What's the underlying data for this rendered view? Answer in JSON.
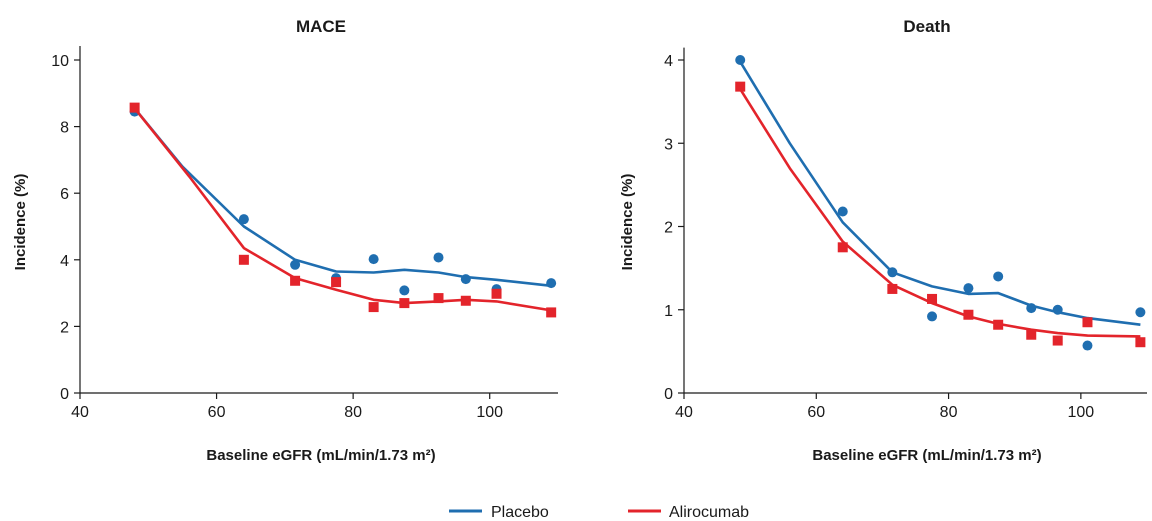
{
  "chart_data": [
    {
      "type": "scatter",
      "title": "MACE",
      "xlabel": "Baseline eGFR (mL/min/1.73 m²)",
      "ylabel": "Incidence (%)",
      "xlim": [
        40,
        110
      ],
      "ylim": [
        0,
        10.3
      ],
      "x_ticks": [
        40,
        60,
        80,
        100
      ],
      "y_ticks": [
        0,
        2,
        4,
        6,
        8,
        10
      ],
      "grid": false,
      "series": [
        {
          "name": "Placebo",
          "color": "#1f6eb0",
          "marker": "circle",
          "points": [
            [
              48,
              8.45
            ],
            [
              64,
              5.22
            ],
            [
              71.5,
              3.85
            ],
            [
              77.5,
              3.45
            ],
            [
              83,
              4.02
            ],
            [
              87.5,
              3.08
            ],
            [
              92.5,
              4.07
            ],
            [
              96.5,
              3.42
            ],
            [
              101,
              3.12
            ],
            [
              109,
              3.3
            ]
          ],
          "trend": [
            [
              48,
              8.55
            ],
            [
              55,
              6.8
            ],
            [
              64,
              5.0
            ],
            [
              71.5,
              4.0
            ],
            [
              77.5,
              3.65
            ],
            [
              83,
              3.62
            ],
            [
              87.5,
              3.7
            ],
            [
              92.5,
              3.62
            ],
            [
              96.5,
              3.48
            ],
            [
              101,
              3.4
            ],
            [
              109,
              3.22
            ]
          ]
        },
        {
          "name": "Alirocumab",
          "color": "#e3242b",
          "marker": "square",
          "points": [
            [
              48,
              8.57
            ],
            [
              64,
              4.0
            ],
            [
              71.5,
              3.37
            ],
            [
              77.5,
              3.33
            ],
            [
              83,
              2.58
            ],
            [
              87.5,
              2.7
            ],
            [
              92.5,
              2.85
            ],
            [
              96.5,
              2.77
            ],
            [
              101,
              2.98
            ],
            [
              109,
              2.42
            ]
          ],
          "trend": [
            [
              48,
              8.55
            ],
            [
              56,
              6.5
            ],
            [
              64,
              4.35
            ],
            [
              71.5,
              3.45
            ],
            [
              77.5,
              3.1
            ],
            [
              83,
              2.8
            ],
            [
              87.5,
              2.7
            ],
            [
              92.5,
              2.75
            ],
            [
              96.5,
              2.8
            ],
            [
              101,
              2.75
            ],
            [
              109,
              2.48
            ]
          ]
        }
      ]
    },
    {
      "type": "scatter",
      "title": "Death",
      "xlabel": "Baseline eGFR (mL/min/1.73 m²)",
      "ylabel": "Incidence (%)",
      "xlim": [
        40,
        110
      ],
      "ylim": [
        0,
        4.1
      ],
      "x_ticks": [
        40,
        60,
        80,
        100
      ],
      "y_ticks": [
        0,
        1,
        2,
        3,
        4
      ],
      "grid": false,
      "series": [
        {
          "name": "Placebo",
          "color": "#1f6eb0",
          "marker": "circle",
          "points": [
            [
              48.5,
              4.0
            ],
            [
              64,
              2.18
            ],
            [
              71.5,
              1.45
            ],
            [
              77.5,
              0.92
            ],
            [
              83,
              1.26
            ],
            [
              87.5,
              1.4
            ],
            [
              92.5,
              1.02
            ],
            [
              96.5,
              1.0
            ],
            [
              101,
              0.57
            ],
            [
              109,
              0.97
            ]
          ],
          "trend": [
            [
              48.5,
              3.98
            ],
            [
              56,
              3.0
            ],
            [
              64,
              2.05
            ],
            [
              71.5,
              1.45
            ],
            [
              77.5,
              1.28
            ],
            [
              83,
              1.19
            ],
            [
              87.5,
              1.2
            ],
            [
              92.5,
              1.05
            ],
            [
              96.5,
              0.97
            ],
            [
              101,
              0.9
            ],
            [
              109,
              0.82
            ]
          ]
        },
        {
          "name": "Alirocumab",
          "color": "#e3242b",
          "marker": "square",
          "points": [
            [
              48.5,
              3.68
            ],
            [
              64,
              1.75
            ],
            [
              71.5,
              1.25
            ],
            [
              77.5,
              1.13
            ],
            [
              83,
              0.94
            ],
            [
              87.5,
              0.82
            ],
            [
              92.5,
              0.7
            ],
            [
              96.5,
              0.63
            ],
            [
              101,
              0.85
            ],
            [
              109,
              0.61
            ]
          ],
          "trend": [
            [
              48.5,
              3.65
            ],
            [
              56,
              2.7
            ],
            [
              64,
              1.82
            ],
            [
              71.5,
              1.3
            ],
            [
              77.5,
              1.08
            ],
            [
              83,
              0.92
            ],
            [
              87.5,
              0.83
            ],
            [
              92.5,
              0.76
            ],
            [
              96.5,
              0.72
            ],
            [
              101,
              0.69
            ],
            [
              109,
              0.68
            ]
          ]
        }
      ]
    }
  ],
  "legend": {
    "placement": "bottom-center",
    "items": [
      {
        "label": "Placebo",
        "color": "#1f6eb0"
      },
      {
        "label": "Alirocumab",
        "color": "#e3242b"
      }
    ]
  }
}
